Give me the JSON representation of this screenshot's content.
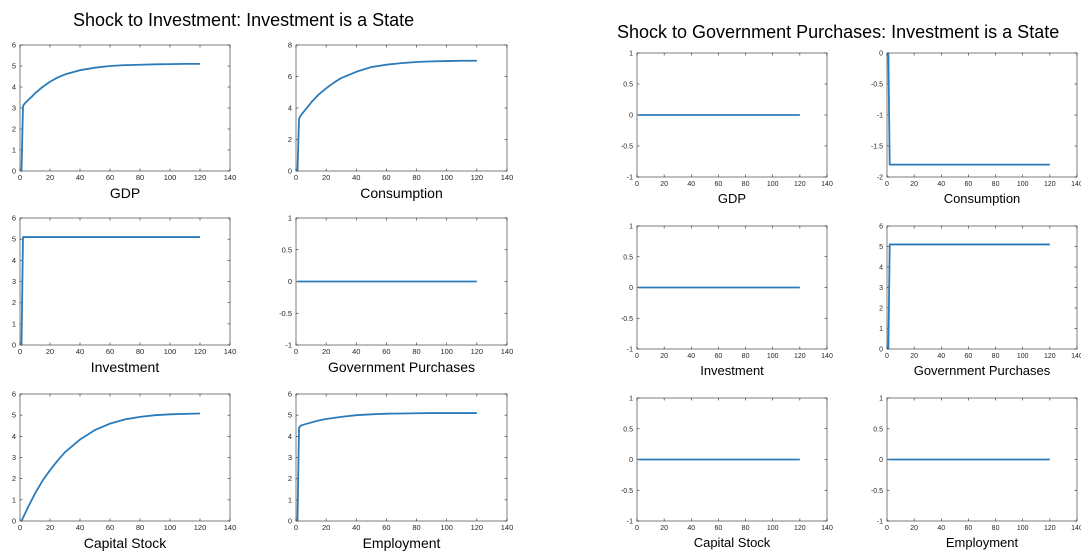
{
  "panels": [
    {
      "title": "Shock to Investment: Investment is a State"
    },
    {
      "title": "Shock to Government Purchases: Investment is a State"
    }
  ],
  "chart_data": [
    {
      "panel": 0,
      "type": "line",
      "xlabel": "GDP",
      "xlim": [
        0,
        140
      ],
      "xticks": [
        0,
        20,
        40,
        60,
        80,
        100,
        120,
        140
      ],
      "ylim": [
        0,
        6
      ],
      "yticks": [
        0,
        1,
        2,
        3,
        4,
        5,
        6
      ],
      "color": "#2b7bba",
      "x": [
        1,
        2,
        3,
        5,
        8,
        10,
        15,
        20,
        25,
        30,
        40,
        50,
        60,
        70,
        80,
        90,
        100,
        110,
        120
      ],
      "y": [
        0,
        3.1,
        3.2,
        3.35,
        3.55,
        3.7,
        4.0,
        4.25,
        4.45,
        4.6,
        4.8,
        4.92,
        5.0,
        5.04,
        5.06,
        5.08,
        5.09,
        5.1,
        5.1
      ]
    },
    {
      "panel": 0,
      "type": "line",
      "xlabel": "Consumption",
      "xlim": [
        0,
        140
      ],
      "xticks": [
        0,
        20,
        40,
        60,
        80,
        100,
        120,
        140
      ],
      "ylim": [
        0,
        8
      ],
      "yticks": [
        0,
        2,
        4,
        6,
        8
      ],
      "color": "#2b7bba",
      "x": [
        1,
        2,
        3,
        5,
        8,
        10,
        15,
        20,
        25,
        30,
        40,
        50,
        60,
        70,
        80,
        90,
        100,
        110,
        120
      ],
      "y": [
        0,
        3.3,
        3.5,
        3.75,
        4.1,
        4.35,
        4.85,
        5.25,
        5.6,
        5.9,
        6.3,
        6.6,
        6.75,
        6.85,
        6.92,
        6.96,
        6.98,
        7.0,
        7.0
      ]
    },
    {
      "panel": 0,
      "type": "line",
      "xlabel": "Investment",
      "xlim": [
        0,
        140
      ],
      "xticks": [
        0,
        20,
        40,
        60,
        80,
        100,
        120,
        140
      ],
      "ylim": [
        0,
        6
      ],
      "yticks": [
        0,
        1,
        2,
        3,
        4,
        5,
        6
      ],
      "color": "#2b7bba",
      "x": [
        1,
        2,
        3,
        120
      ],
      "y": [
        0,
        5.1,
        5.1,
        5.1
      ]
    },
    {
      "panel": 0,
      "type": "line",
      "xlabel": "Government Purchases",
      "xlim": [
        0,
        140
      ],
      "xticks": [
        0,
        20,
        40,
        60,
        80,
        100,
        120,
        140
      ],
      "ylim": [
        -1,
        1
      ],
      "yticks": [
        -1,
        -0.5,
        0,
        0.5,
        1
      ],
      "color": "#2b7bba",
      "x": [
        1,
        120
      ],
      "y": [
        0,
        0
      ]
    },
    {
      "panel": 0,
      "type": "line",
      "xlabel": "Capital Stock",
      "xlim": [
        0,
        140
      ],
      "xticks": [
        0,
        20,
        40,
        60,
        80,
        100,
        120,
        140
      ],
      "ylim": [
        0,
        6
      ],
      "yticks": [
        0,
        1,
        2,
        3,
        4,
        5,
        6
      ],
      "color": "#2b7bba",
      "x": [
        1,
        5,
        10,
        15,
        20,
        25,
        30,
        40,
        50,
        60,
        70,
        80,
        90,
        100,
        110,
        120
      ],
      "y": [
        0,
        0.6,
        1.3,
        1.9,
        2.4,
        2.85,
        3.25,
        3.85,
        4.3,
        4.6,
        4.8,
        4.92,
        5.0,
        5.04,
        5.06,
        5.08
      ]
    },
    {
      "panel": 0,
      "type": "line",
      "xlabel": "Employment",
      "xlim": [
        0,
        140
      ],
      "xticks": [
        0,
        20,
        40,
        60,
        80,
        100,
        120,
        140
      ],
      "ylim": [
        0,
        6
      ],
      "yticks": [
        0,
        1,
        2,
        3,
        4,
        5,
        6
      ],
      "color": "#2b7bba",
      "x": [
        1,
        2,
        3,
        5,
        10,
        15,
        20,
        30,
        40,
        50,
        60,
        70,
        80,
        90,
        100,
        110,
        120
      ],
      "y": [
        0,
        4.4,
        4.5,
        4.55,
        4.65,
        4.75,
        4.82,
        4.92,
        5.0,
        5.04,
        5.07,
        5.08,
        5.09,
        5.1,
        5.1,
        5.1,
        5.1
      ]
    },
    {
      "panel": 1,
      "type": "line",
      "xlabel": "GDP",
      "xlim": [
        0,
        140
      ],
      "xticks": [
        0,
        20,
        40,
        60,
        80,
        100,
        120,
        140
      ],
      "ylim": [
        -1,
        1
      ],
      "yticks": [
        -1,
        -0.5,
        0,
        0.5,
        1
      ],
      "color": "#2b7bba",
      "x": [
        1,
        120
      ],
      "y": [
        0,
        0
      ]
    },
    {
      "panel": 1,
      "type": "line",
      "xlabel": "Consumption",
      "xlim": [
        0,
        140
      ],
      "xticks": [
        0,
        20,
        40,
        60,
        80,
        100,
        120,
        140
      ],
      "ylim": [
        -2,
        0
      ],
      "yticks": [
        -2,
        -1.5,
        -1,
        -0.5,
        0
      ],
      "color": "#2b7bba",
      "x": [
        1,
        2,
        3,
        120
      ],
      "y": [
        0,
        -1.8,
        -1.8,
        -1.8
      ]
    },
    {
      "panel": 1,
      "type": "line",
      "xlabel": "Investment",
      "xlim": [
        0,
        140
      ],
      "xticks": [
        0,
        20,
        40,
        60,
        80,
        100,
        120,
        140
      ],
      "ylim": [
        -1,
        1
      ],
      "yticks": [
        -1,
        -0.5,
        0,
        0.5,
        1
      ],
      "color": "#2b7bba",
      "x": [
        1,
        120
      ],
      "y": [
        0,
        0
      ]
    },
    {
      "panel": 1,
      "type": "line",
      "xlabel": "Government Purchases",
      "xlim": [
        0,
        140
      ],
      "xticks": [
        0,
        20,
        40,
        60,
        80,
        100,
        120,
        140
      ],
      "ylim": [
        0,
        6
      ],
      "yticks": [
        0,
        1,
        2,
        3,
        4,
        5,
        6
      ],
      "color": "#2b7bba",
      "x": [
        1,
        2,
        3,
        120
      ],
      "y": [
        0,
        5.1,
        5.1,
        5.1
      ]
    },
    {
      "panel": 1,
      "type": "line",
      "xlabel": "Capital Stock",
      "xlim": [
        0,
        140
      ],
      "xticks": [
        0,
        20,
        40,
        60,
        80,
        100,
        120,
        140
      ],
      "ylim": [
        -1,
        1
      ],
      "yticks": [
        -1,
        -0.5,
        0,
        0.5,
        1
      ],
      "color": "#2b7bba",
      "x": [
        1,
        120
      ],
      "y": [
        0,
        0
      ]
    },
    {
      "panel": 1,
      "type": "line",
      "xlabel": "Employment",
      "xlim": [
        0,
        140
      ],
      "xticks": [
        0,
        20,
        40,
        60,
        80,
        100,
        120,
        140
      ],
      "ylim": [
        -1,
        1
      ],
      "yticks": [
        -1,
        -0.5,
        0,
        0.5,
        1
      ],
      "color": "#2b7bba",
      "x": [
        1,
        120
      ],
      "y": [
        0,
        0
      ]
    }
  ]
}
